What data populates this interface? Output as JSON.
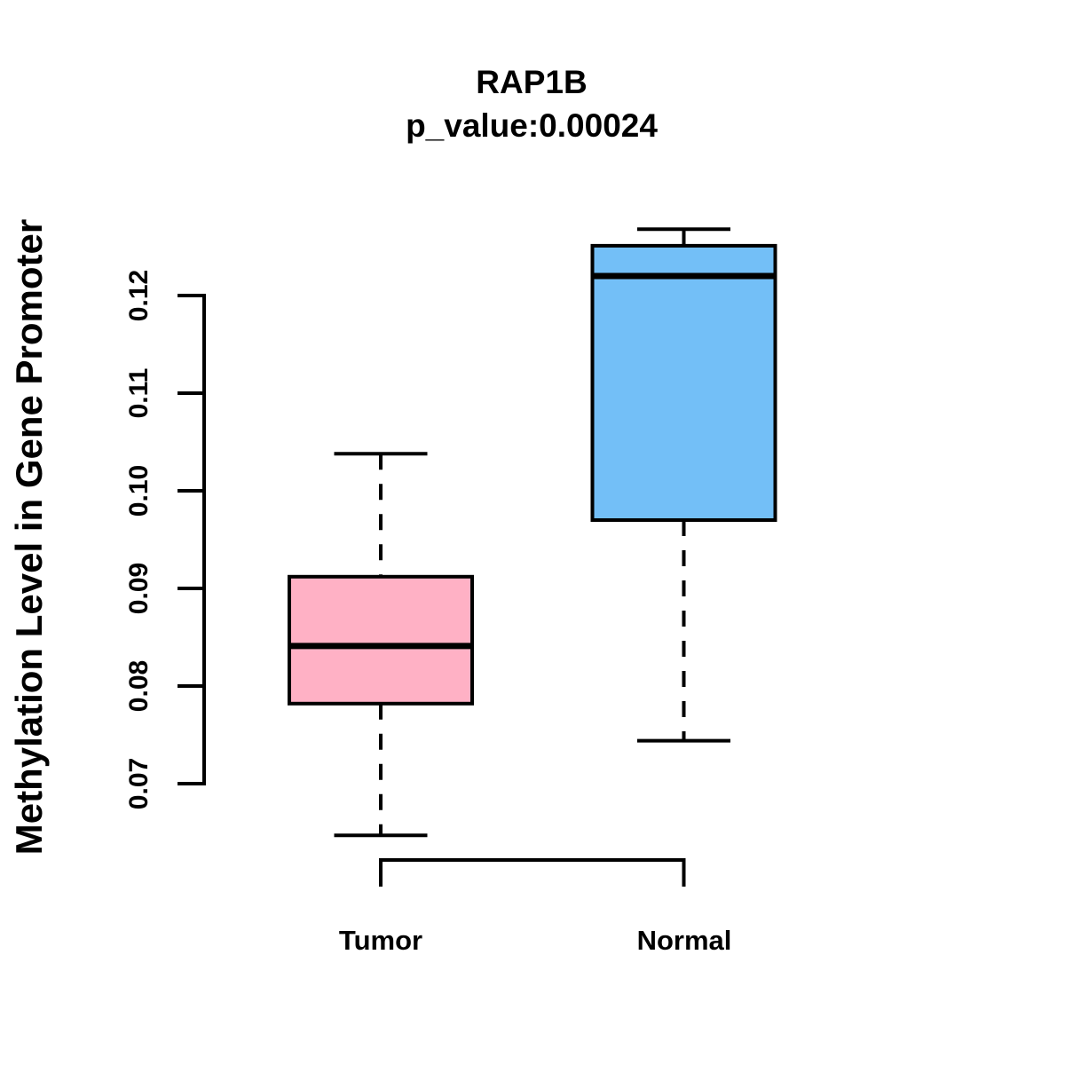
{
  "chart_data": {
    "type": "boxplot",
    "title": "RAP1B",
    "subtitle": "p_value:0.00024",
    "ylabel": "Methylation Level in Gene Promoter",
    "xlabel": "",
    "yticks": [
      "0.07",
      "0.08",
      "0.09",
      "0.10",
      "0.11",
      "0.12"
    ],
    "ylim": [
      0.063,
      0.128
    ],
    "grid": false,
    "legend": "none",
    "groups": [
      {
        "label": "Tumor",
        "color": "#FFB1C5",
        "whisker_low": 0.0647,
        "q1": 0.0782,
        "median": 0.0841,
        "q3": 0.0912,
        "whisker_high": 0.1038
      },
      {
        "label": "Normal",
        "color": "#73BFF7",
        "whisker_low": 0.0744,
        "q1": 0.097,
        "median": 0.122,
        "q3": 0.1251,
        "whisker_high": 0.1268
      }
    ],
    "border_color": "#000000"
  }
}
